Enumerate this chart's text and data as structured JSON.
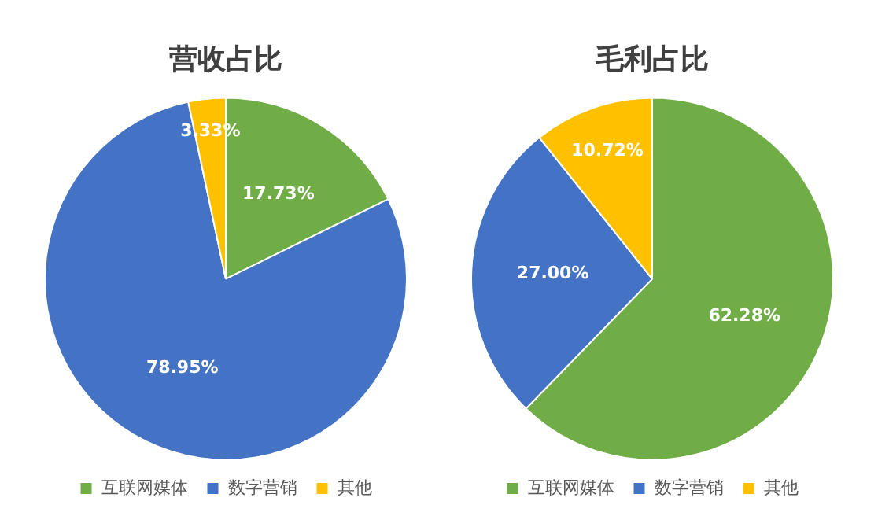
{
  "chart_data": [
    {
      "type": "pie",
      "title": "营收占比",
      "categories": [
        "互联网媒体",
        "数字营销",
        "其他"
      ],
      "values": [
        17.73,
        78.95,
        3.33
      ],
      "colors": [
        "#70ad47",
        "#4472c4",
        "#ffc000"
      ],
      "value_labels": [
        "17.73%",
        "78.95%",
        "3.33%"
      ],
      "legend": "bottom"
    },
    {
      "type": "pie",
      "title": "毛利占比",
      "categories": [
        "互联网媒体",
        "数字营销",
        "其他"
      ],
      "values": [
        62.28,
        27.0,
        10.72
      ],
      "colors": [
        "#70ad47",
        "#4472c4",
        "#ffc000"
      ],
      "value_labels": [
        "62.28%",
        "27.00%",
        "10.72%"
      ],
      "legend": "bottom"
    }
  ]
}
